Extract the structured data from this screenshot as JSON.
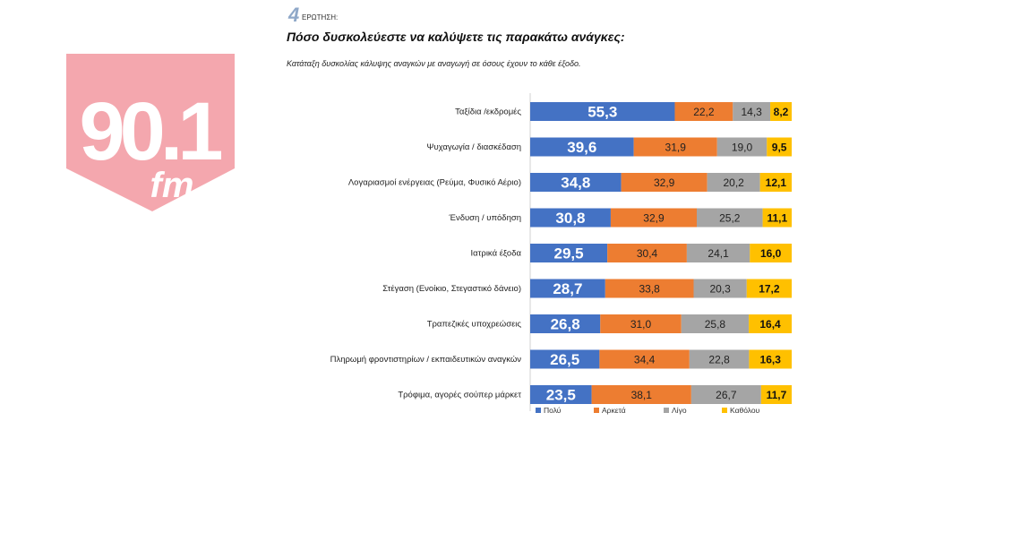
{
  "logo": {
    "number": "90.1",
    "suffix": "fm",
    "color": "#f4a7ae"
  },
  "question": {
    "number": "4",
    "label": "ΕΡΩΤΗΣΗ:"
  },
  "chart_data": {
    "type": "bar",
    "orientation": "horizontal",
    "stacked": true,
    "title": "Πόσο δυσκολεύεστε να καλύψετε τις παρακάτω ανάγκες:",
    "subtitle": "Κατάταξη δυσκολίας κάλυψης αναγκών με αναγωγή σε όσους έχουν το κάθε έξοδο.",
    "xlim": [
      0,
      100
    ],
    "grid": false,
    "legend_position": "bottom",
    "categories": [
      "Ταξίδια /εκδρομές",
      "Ψυχαγωγία / διασκέδαση",
      "Λογαριασμοί ενέργειας (Ρεύμα, Φυσικό Αέριο)",
      "Ένδυση / υπόδηση",
      "Ιατρικά έξοδα",
      "Στέγαση (Ενοίκιο, Στεγαστικό δάνειο)",
      "Τραπεζικές υποχρεώσεις",
      "Πληρωμή φροντιστηρίων / εκπαιδευτικών αναγκών",
      "Τρόφιμα, αγορές σούπερ μάρκετ"
    ],
    "series": [
      {
        "name": "Πολύ",
        "color": "#4472c4",
        "values": [
          55.3,
          39.6,
          34.8,
          30.8,
          29.5,
          28.7,
          26.8,
          26.5,
          23.5
        ]
      },
      {
        "name": "Αρκετά",
        "color": "#ed7d31",
        "values": [
          22.2,
          31.9,
          32.9,
          32.9,
          30.4,
          33.8,
          31.0,
          34.4,
          38.1
        ]
      },
      {
        "name": "Λίγο",
        "color": "#a5a5a5",
        "values": [
          14.3,
          19.0,
          20.2,
          25.2,
          24.1,
          20.3,
          25.8,
          22.8,
          26.7
        ]
      },
      {
        "name": "Καθόλου",
        "color": "#ffc000",
        "values": [
          8.2,
          9.5,
          12.1,
          11.1,
          16.0,
          17.2,
          16.4,
          16.3,
          11.7
        ]
      }
    ]
  }
}
